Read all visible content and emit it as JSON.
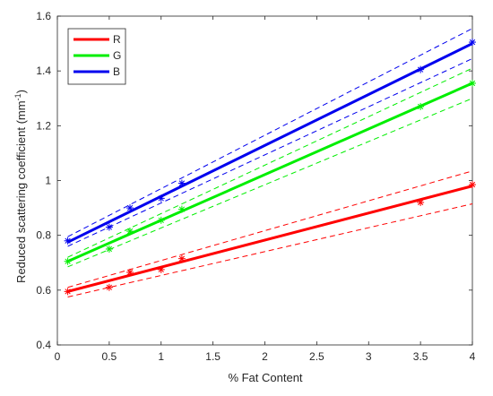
{
  "chart_data": {
    "type": "line",
    "xlabel": "% Fat Content",
    "ylabel_main": "Reduced scattering coefficient (mm",
    "ylabel_sup": "-1",
    "ylabel_close": ")",
    "xlim": [
      0,
      4
    ],
    "ylim": [
      0.4,
      1.6
    ],
    "xticks": [
      0,
      0.5,
      1,
      1.5,
      2,
      2.5,
      3,
      3.5,
      4
    ],
    "yticks": [
      0.4,
      0.6,
      0.8,
      1,
      1.2,
      1.4,
      1.6
    ],
    "xtick_labels": [
      "0",
      "0.5",
      "1",
      "1.5",
      "2",
      "2.5",
      "3",
      "3.5",
      "4"
    ],
    "ytick_labels": [
      "0.4",
      "0.6",
      "0.8",
      "1",
      "1.2",
      "1.4",
      "1.6"
    ],
    "grid": false,
    "legend_position": "top-left",
    "series": [
      {
        "name": "R",
        "color": "#ff0000",
        "points": {
          "x": [
            0.1,
            0.5,
            0.7,
            1.0,
            1.2,
            3.5,
            4.0
          ],
          "y": [
            0.595,
            0.61,
            0.665,
            0.675,
            0.715,
            0.92,
            0.985
          ]
        },
        "fit": {
          "x": [
            0.1,
            4.0
          ],
          "y": [
            0.595,
            0.98
          ]
        },
        "ci_upper": {
          "x": [
            0.1,
            4.0
          ],
          "y": [
            0.61,
            1.035
          ]
        },
        "ci_lower": {
          "x": [
            0.1,
            4.0
          ],
          "y": [
            0.575,
            0.915
          ]
        }
      },
      {
        "name": "G",
        "color": "#00ee00",
        "points": {
          "x": [
            0.1,
            0.5,
            0.7,
            1.0,
            1.2,
            3.5,
            4.0
          ],
          "y": [
            0.705,
            0.75,
            0.815,
            0.855,
            0.895,
            1.27,
            1.355
          ]
        },
        "fit": {
          "x": [
            0.1,
            4.0
          ],
          "y": [
            0.705,
            1.355
          ]
        },
        "ci_upper": {
          "x": [
            0.1,
            4.0
          ],
          "y": [
            0.72,
            1.41
          ]
        },
        "ci_lower": {
          "x": [
            0.1,
            4.0
          ],
          "y": [
            0.685,
            1.3
          ]
        }
      },
      {
        "name": "B",
        "color": "#0000ee",
        "points": {
          "x": [
            0.1,
            0.5,
            0.7,
            1.0,
            1.2,
            3.5,
            4.0
          ],
          "y": [
            0.78,
            0.83,
            0.9,
            0.935,
            0.99,
            1.405,
            1.505
          ]
        },
        "fit": {
          "x": [
            0.1,
            4.0
          ],
          "y": [
            0.775,
            1.5
          ]
        },
        "ci_upper": {
          "x": [
            0.1,
            4.0
          ],
          "y": [
            0.795,
            1.555
          ]
        },
        "ci_lower": {
          "x": [
            0.1,
            4.0
          ],
          "y": [
            0.76,
            1.445
          ]
        }
      }
    ]
  }
}
